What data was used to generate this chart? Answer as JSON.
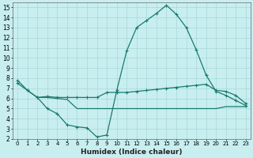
{
  "xlabel": "Humidex (Indice chaleur)",
  "bg_color": "#c8eef0",
  "line_color": "#1a7a6e",
  "grid_color": "#a8d8d8",
  "xlim": [
    -0.5,
    23.5
  ],
  "ylim": [
    2,
    15.5
  ],
  "xticks": [
    0,
    1,
    2,
    3,
    4,
    5,
    6,
    7,
    8,
    9,
    10,
    11,
    12,
    13,
    14,
    15,
    16,
    17,
    18,
    19,
    20,
    21,
    22,
    23
  ],
  "yticks": [
    2,
    3,
    4,
    5,
    6,
    7,
    8,
    9,
    10,
    11,
    12,
    13,
    14,
    15
  ],
  "curve1_x": [
    0,
    1,
    2,
    3,
    4,
    5,
    6,
    7,
    8,
    9,
    10,
    11,
    12,
    13,
    14,
    15,
    16,
    17,
    18,
    19,
    20,
    21,
    22,
    23
  ],
  "curve1_y": [
    7.8,
    6.8,
    6.1,
    5.0,
    4.5,
    3.4,
    3.2,
    3.1,
    2.2,
    2.4,
    6.8,
    10.7,
    13.0,
    13.7,
    14.4,
    15.2,
    14.3,
    13.0,
    10.8,
    8.3,
    6.7,
    6.3,
    5.8,
    5.3
  ],
  "curve2_x": [
    0,
    1,
    2,
    3,
    4,
    5,
    6,
    7,
    8,
    9,
    10,
    11,
    12,
    13,
    14,
    15,
    16,
    17,
    18,
    19,
    20,
    21,
    22,
    23
  ],
  "curve2_y": [
    7.5,
    6.8,
    6.1,
    6.2,
    6.1,
    6.1,
    6.1,
    6.1,
    6.1,
    6.6,
    6.6,
    6.6,
    6.7,
    6.8,
    6.9,
    7.0,
    7.1,
    7.2,
    7.3,
    7.4,
    6.8,
    6.7,
    6.3,
    5.5
  ],
  "curve3_x": [
    2,
    3,
    4,
    5,
    6,
    7,
    8,
    9,
    10,
    11,
    12,
    13,
    14,
    15,
    16,
    17,
    18,
    19,
    20,
    21,
    22,
    23
  ],
  "curve3_y": [
    6.1,
    6.1,
    6.0,
    5.9,
    5.0,
    5.0,
    5.0,
    5.0,
    5.0,
    5.0,
    5.0,
    5.0,
    5.0,
    5.0,
    5.0,
    5.0,
    5.0,
    5.0,
    5.0,
    5.2,
    5.2,
    5.2
  ]
}
